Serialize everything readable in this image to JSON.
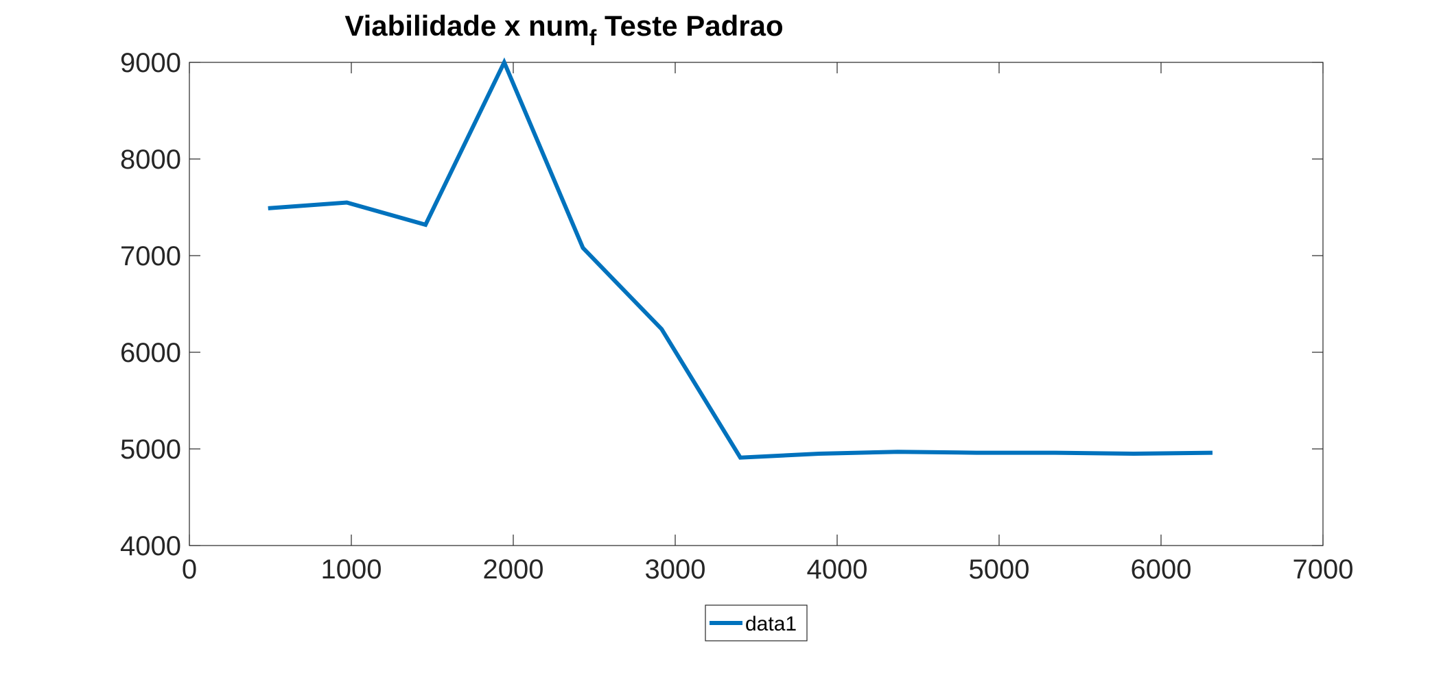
{
  "chart_data": {
    "type": "line",
    "title": "Viabilidade x num",
    "title_subscript": "f",
    "title_suffix": " Teste Padrao",
    "xlabel": "",
    "ylabel": "",
    "xlim": [
      0,
      7000
    ],
    "ylim": [
      4000,
      9000
    ],
    "xticks": [
      0,
      1000,
      2000,
      3000,
      4000,
      5000,
      6000,
      7000
    ],
    "yticks": [
      4000,
      5000,
      6000,
      7000,
      8000,
      9000
    ],
    "grid": false,
    "legend_position": "bottom-center",
    "series": [
      {
        "name": "data1",
        "color": "#0072BD",
        "x": [
          486,
          972,
          1458,
          1944,
          2430,
          2916,
          3402,
          3888,
          4374,
          4860,
          5346,
          5832,
          6318
        ],
        "y": [
          7490,
          7550,
          7320,
          9000,
          7080,
          6240,
          4910,
          4950,
          4970,
          4960,
          4960,
          4950,
          4960
        ]
      }
    ]
  }
}
